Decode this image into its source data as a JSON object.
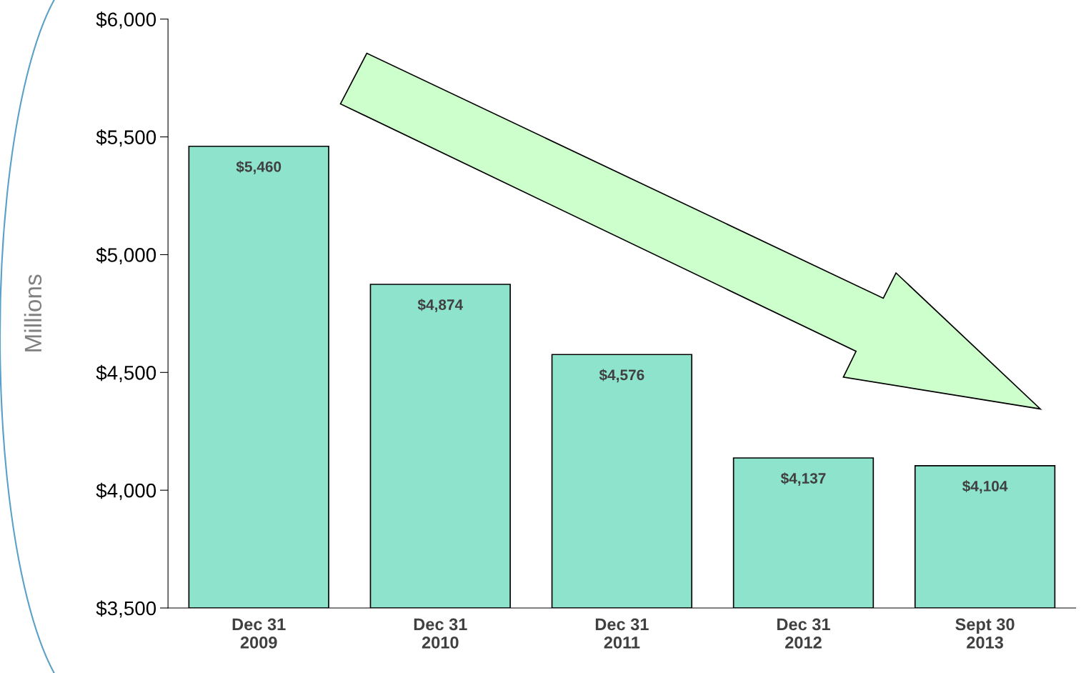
{
  "chart_data": {
    "type": "bar",
    "ylabel": "Millions",
    "categories": [
      "Dec 31\n2009",
      "Dec 31\n2010",
      "Dec 31\n2011",
      "Dec 31\n2012",
      "Sept 30\n2013"
    ],
    "values": [
      5460,
      4874,
      4576,
      4137,
      4104
    ],
    "value_labels": [
      "$5,460",
      "$4,874",
      "$4,576",
      "$4,137",
      "$4,104"
    ],
    "color": "#8ee3cc",
    "ylim": [
      3500,
      6000
    ],
    "yticks": [
      {
        "value": 3500,
        "label": "$3,500"
      },
      {
        "value": 4000,
        "label": "$4,000"
      },
      {
        "value": 4500,
        "label": "$4,500"
      },
      {
        "value": 5000,
        "label": "$5,000"
      },
      {
        "value": 5500,
        "label": "$5,500"
      },
      {
        "value": 6000,
        "label": "$6,000"
      }
    ],
    "grid": false
  }
}
